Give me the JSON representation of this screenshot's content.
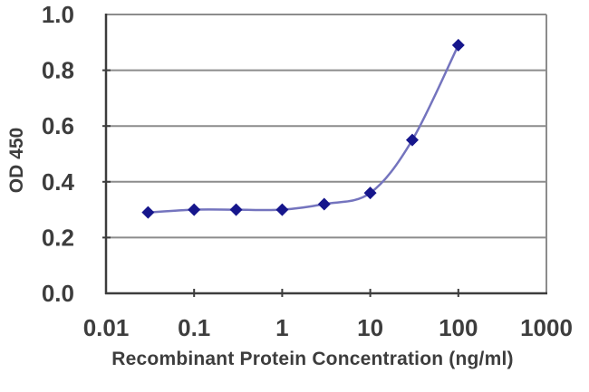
{
  "chart_data": {
    "type": "line",
    "title": "",
    "x": [
      0.03,
      0.1,
      0.3,
      1,
      3,
      10,
      30,
      100
    ],
    "y": [
      0.29,
      0.3,
      0.3,
      0.3,
      0.32,
      0.36,
      0.55,
      0.89
    ],
    "xlabel": "Recombinant Protein Concentration (ng/ml)",
    "ylabel": "OD 450",
    "x_scale": "log",
    "xlim": [
      0.01,
      1000
    ],
    "ylim": [
      0.0,
      1.0
    ],
    "x_ticks": [
      0.01,
      0.1,
      1,
      10,
      100,
      1000
    ],
    "x_tick_labels": [
      "0.01",
      "0.1",
      "1",
      "10",
      "100",
      "1000"
    ],
    "y_ticks": [
      0.0,
      0.2,
      0.4,
      0.6,
      0.8,
      1.0
    ],
    "y_tick_labels": [
      "0.0",
      "0.2",
      "0.4",
      "0.6",
      "0.8",
      "1.0"
    ],
    "grid": "horizontal-major",
    "legend": "none",
    "marker": "diamond",
    "line_style": "smooth",
    "colors": {
      "line": "#7474be",
      "marker": "#16168c",
      "grid": "#8c8c8c",
      "axis": "#3c3c3c",
      "text": "#3d3d3d",
      "background": "#ffffff"
    }
  }
}
